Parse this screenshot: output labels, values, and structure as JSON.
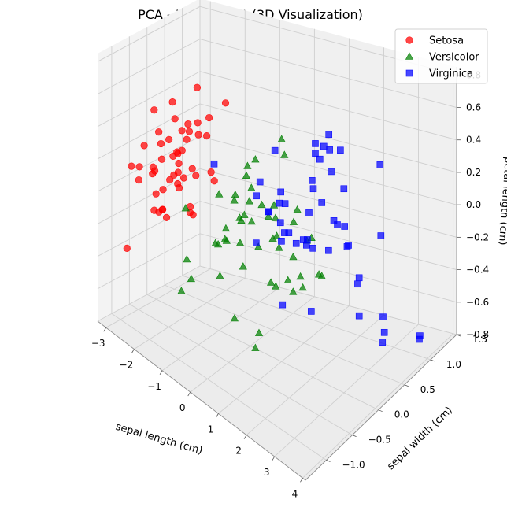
{
  "chart_data": {
    "type": "scatter",
    "projection": "3d",
    "title": "PCA - Iris Dataset (3D Visualization)",
    "xlabel": "sepal length (cm)",
    "ylabel": "sepal width (cm)",
    "zlabel": "petal length (cm)",
    "xlim": [
      -3.3,
      4.1
    ],
    "ylim": [
      -1.4,
      1.5
    ],
    "zlim": [
      -0.8,
      0.85
    ],
    "x_ticks": [
      -3,
      -2,
      -1,
      0,
      1,
      2,
      3,
      4
    ],
    "y_ticks": [
      -1.0,
      -0.5,
      0.0,
      0.5,
      1.0,
      1.5
    ],
    "z_ticks": [
      -0.8,
      -0.6,
      -0.4,
      -0.2,
      0.0,
      0.2,
      0.4,
      0.6,
      0.8
    ],
    "x_tick_labels": [
      "−3",
      "−2",
      "−1",
      "0",
      "1",
      "2",
      "3",
      "4"
    ],
    "y_tick_labels": [
      "−1.0",
      "−0.5",
      "0.0",
      "0.5",
      "1.0",
      "1.5"
    ],
    "z_tick_labels": [
      "−0.8",
      "−0.6",
      "−0.4",
      "−0.2",
      "0.0",
      "0.2",
      "0.4",
      "0.6",
      "0.8"
    ],
    "grid": true,
    "legend_position": "top-right",
    "series": [
      {
        "name": "Setosa",
        "color": "#ff0000",
        "marker": "circle",
        "points": [
          [
            -2.68,
            0.32,
            -0.03
          ],
          [
            -2.71,
            -0.18,
            -0.21
          ],
          [
            -2.89,
            -0.14,
            0.02
          ],
          [
            -2.75,
            -0.32,
            0.04
          ],
          [
            -2.73,
            0.33,
            0.09
          ],
          [
            -2.28,
            0.74,
            0.17
          ],
          [
            -2.82,
            -0.09,
            0.26
          ],
          [
            -2.63,
            0.16,
            -0.02
          ],
          [
            -2.89,
            -0.58,
            0.02
          ],
          [
            -2.67,
            -0.11,
            -0.2
          ],
          [
            -2.51,
            0.65,
            -0.08
          ],
          [
            -2.61,
            0.01,
            0.22
          ],
          [
            -2.79,
            -0.24,
            -0.2
          ],
          [
            -3.22,
            -0.51,
            0.06
          ],
          [
            -2.64,
            1.18,
            -0.14
          ],
          [
            -2.39,
            1.34,
            0.28
          ],
          [
            -2.62,
            0.82,
            0.14
          ],
          [
            -2.65,
            0.31,
            0.03
          ],
          [
            -2.2,
            0.87,
            -0.12
          ],
          [
            -2.59,
            0.51,
            0.25
          ],
          [
            -2.31,
            0.4,
            -0.27
          ],
          [
            -2.54,
            0.43,
            0.17
          ],
          [
            -3.22,
            0.13,
            0.33
          ],
          [
            -2.3,
            0.1,
            0.17
          ],
          [
            -2.36,
            -0.04,
            0.38
          ],
          [
            -2.51,
            -0.14,
            -0.23
          ],
          [
            -2.47,
            0.13,
            0.13
          ],
          [
            -2.56,
            0.37,
            -0.06
          ],
          [
            -2.64,
            0.31,
            -0.12
          ],
          [
            -2.63,
            -0.19,
            0.22
          ],
          [
            -2.59,
            -0.2,
            0.13
          ],
          [
            -2.41,
            0.41,
            -0.23
          ],
          [
            -2.65,
            0.81,
            0.43
          ],
          [
            -2.6,
            1.09,
            0.21
          ],
          [
            -2.67,
            -0.12,
            -0.2
          ],
          [
            -2.87,
            0.07,
            -0.12
          ],
          [
            -2.63,
            0.6,
            -0.31
          ],
          [
            -2.8,
            0.27,
            0.4
          ],
          [
            -2.98,
            -0.49,
            0.08
          ],
          [
            -2.59,
            0.23,
            -0.08
          ],
          [
            -2.77,
            0.26,
            0.07
          ],
          [
            -2.85,
            -0.94,
            -0.35
          ],
          [
            -3.0,
            -0.34,
            0.19
          ],
          [
            -2.41,
            0.19,
            0.27
          ],
          [
            -2.21,
            0.44,
            0.3
          ],
          [
            -2.72,
            -0.25,
            -0.09
          ],
          [
            -2.54,
            0.5,
            0.21
          ],
          [
            -2.84,
            -0.23,
            0.06
          ],
          [
            -2.54,
            0.58,
            -0.03
          ],
          [
            -2.7,
            0.11,
            -0.05
          ]
        ]
      },
      {
        "name": "Versicolor",
        "color": "#008000",
        "marker": "triangle",
        "points": [
          [
            1.28,
            0.69,
            -0.41
          ],
          [
            0.93,
            0.32,
            -0.02
          ],
          [
            1.46,
            0.5,
            -0.34
          ],
          [
            0.18,
            -0.83,
            -0.18
          ],
          [
            1.09,
            0.08,
            -0.31
          ],
          [
            0.64,
            -0.42,
            0.12
          ],
          [
            1.1,
            0.28,
            0.08
          ],
          [
            -0.75,
            -1.0,
            0.16
          ],
          [
            1.04,
            0.23,
            -0.42
          ],
          [
            -0.01,
            -0.72,
            0.28
          ],
          [
            -0.51,
            -1.27,
            -0.27
          ],
          [
            0.51,
            -0.1,
            0.14
          ],
          [
            0.26,
            -0.55,
            -0.49
          ],
          [
            0.98,
            -0.12,
            0.11
          ],
          [
            -0.17,
            -0.25,
            0.13
          ],
          [
            0.93,
            0.47,
            -0.39
          ],
          [
            0.66,
            -0.35,
            0.49
          ],
          [
            0.23,
            -0.33,
            -0.22
          ],
          [
            0.94,
            -0.54,
            -0.6
          ],
          [
            0.04,
            -0.58,
            -0.03
          ],
          [
            1.12,
            -0.08,
            0.6
          ],
          [
            0.36,
            -0.07,
            -0.14
          ],
          [
            1.3,
            -0.33,
            -0.23
          ],
          [
            0.92,
            -0.18,
            -0.28
          ],
          [
            0.71,
            0.15,
            -0.16
          ],
          [
            0.9,
            0.33,
            -0.24
          ],
          [
            1.33,
            0.24,
            -0.37
          ],
          [
            1.56,
            0.27,
            -0.05
          ],
          [
            0.81,
            -0.16,
            0.11
          ],
          [
            -0.31,
            -0.37,
            -0.1
          ],
          [
            -0.07,
            -0.7,
            -0.04
          ],
          [
            -0.19,
            -0.68,
            -0.05
          ],
          [
            0.14,
            -0.31,
            0.05
          ],
          [
            1.38,
            -0.42,
            0.3
          ],
          [
            0.59,
            -0.48,
            0.47
          ],
          [
            0.81,
            0.2,
            0.41
          ],
          [
            1.22,
            0.41,
            -0.13
          ],
          [
            0.81,
            -0.37,
            -0.56
          ],
          [
            0.25,
            -0.27,
            0.33
          ],
          [
            0.16,
            -0.68,
            0.08
          ],
          [
            0.46,
            -0.67,
            0.32
          ],
          [
            0.89,
            -0.03,
            -0.03
          ],
          [
            0.23,
            -0.4,
            -0.06
          ],
          [
            -0.71,
            -1.0,
            -0.15
          ],
          [
            0.36,
            -0.5,
            0.13
          ],
          [
            0.33,
            -0.21,
            0.25
          ],
          [
            0.38,
            -0.29,
            0.19
          ],
          [
            0.64,
            0.06,
            -0.09
          ],
          [
            -0.91,
            -0.75,
            -0.34
          ],
          [
            0.3,
            -0.35,
            0.11
          ]
        ]
      },
      {
        "name": "Virginica",
        "color": "#0000ff",
        "marker": "square",
        "points": [
          [
            2.53,
            -0.01,
            0.75
          ],
          [
            1.41,
            -0.57,
            0.3
          ],
          [
            2.61,
            0.34,
            -0.02
          ],
          [
            1.97,
            -0.18,
            0.09
          ],
          [
            2.35,
            -0.04,
            0.32
          ],
          [
            3.4,
            0.55,
            -0.55
          ],
          [
            0.52,
            -1.19,
            0.63
          ],
          [
            2.93,
            0.35,
            -0.43
          ],
          [
            2.32,
            -0.24,
            -0.3
          ],
          [
            2.92,
            0.78,
            0.38
          ],
          [
            1.66,
            0.24,
            0.27
          ],
          [
            1.8,
            -0.22,
            0.06
          ],
          [
            2.17,
            0.22,
            -0.06
          ],
          [
            1.34,
            -0.78,
            0.44
          ],
          [
            1.59,
            -0.54,
            0.69
          ],
          [
            1.9,
            0.12,
            0.54
          ],
          [
            1.95,
            0.04,
            -0.02
          ],
          [
            3.49,
            1.18,
            -0.77
          ],
          [
            3.8,
            0.26,
            -0.49
          ],
          [
            1.3,
            -0.76,
            0.14
          ],
          [
            2.43,
            0.38,
            0.07
          ],
          [
            1.2,
            -0.61,
            0.47
          ],
          [
            3.5,
            0.46,
            -0.42
          ],
          [
            1.39,
            -0.2,
            0.08
          ],
          [
            2.28,
            0.33,
            0.08
          ],
          [
            2.61,
            0.56,
            -0.28
          ],
          [
            1.26,
            -0.18,
            0.01
          ],
          [
            1.29,
            -0.12,
            0.23
          ],
          [
            2.12,
            -0.21,
            0.08
          ],
          [
            2.39,
            0.46,
            -0.08
          ],
          [
            2.84,
            0.38,
            -0.25
          ],
          [
            3.23,
            1.37,
            -0.82
          ],
          [
            2.16,
            -0.22,
            0.12
          ],
          [
            1.44,
            -0.14,
            0.07
          ],
          [
            1.78,
            -0.5,
            -0.25
          ],
          [
            3.08,
            0.69,
            -0.02
          ],
          [
            2.14,
            0.14,
            0.6
          ],
          [
            1.9,
            0.05,
            0.39
          ],
          [
            1.17,
            -0.16,
            0.23
          ],
          [
            2.11,
            0.37,
            0.08
          ],
          [
            2.31,
            0.18,
            0.45
          ],
          [
            1.92,
            0.41,
            0.49
          ],
          [
            1.41,
            -0.57,
            0.3
          ],
          [
            2.56,
            0.28,
            0.34
          ],
          [
            2.42,
            0.3,
            0.56
          ],
          [
            1.94,
            0.19,
            0.49
          ],
          [
            1.53,
            -0.38,
            0.2
          ],
          [
            1.76,
            0.08,
            0.17
          ],
          [
            1.9,
            0.12,
            0.6
          ],
          [
            1.39,
            -0.28,
            0.35
          ]
        ]
      }
    ]
  }
}
